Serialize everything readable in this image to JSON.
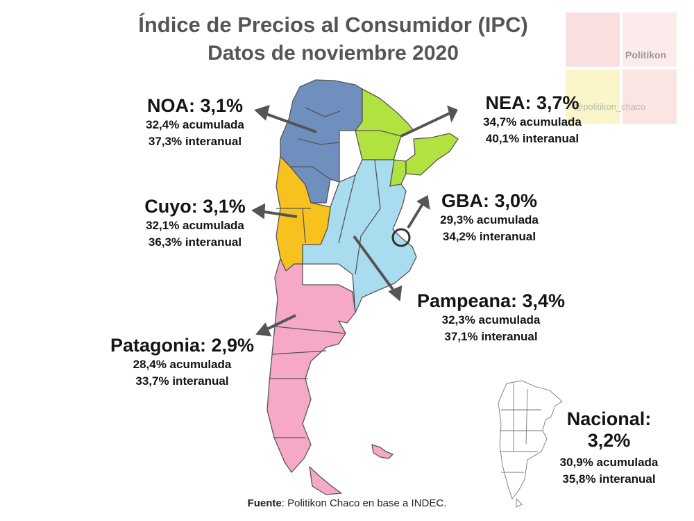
{
  "title": {
    "line1": "Índice de Precios al Consumidor (IPC)",
    "line2": "Datos de noviembre 2020"
  },
  "logo": {
    "name": "Politikon",
    "handle": "@politikon_chaco"
  },
  "colors": {
    "noa": "#6f8fbf",
    "nea": "#b2e23f",
    "cuyo": "#f7c21e",
    "pampeana": "#a9dcef",
    "gba": "#a9dcef",
    "patagonia": "#f5a9c7",
    "logo_red": "#f4c5c2",
    "logo_yellow": "#f8f2b2"
  },
  "regions": {
    "noa": {
      "name": "NOA: 3,1%",
      "acumulada": "32,4% acumulada",
      "interanual": "37,3% interanual"
    },
    "nea": {
      "name": "NEA: 3,7%",
      "acumulada": "34,7% acumulada",
      "interanual": "40,1% interanual"
    },
    "cuyo": {
      "name": "Cuyo: 3,1%",
      "acumulada": "32,1% acumulada",
      "interanual": "36,3% interanual"
    },
    "gba": {
      "name": "GBA: 3,0%",
      "acumulada": "29,3% acumulada",
      "interanual": "34,2% interanual"
    },
    "pampeana": {
      "name": "Pampeana: 3,4%",
      "acumulada": "32,3% acumulada",
      "interanual": "37,1% interanual"
    },
    "patagonia": {
      "name": "Patagonia: 2,9%",
      "acumulada": "28,4% acumulada",
      "interanual": "33,7% interanual"
    },
    "nacional": {
      "name_line1": "Nacional:",
      "name_line2": "3,2%",
      "acumulada": "30,9% acumulada",
      "interanual": "35,8% interanual"
    }
  },
  "source": {
    "label": "Fuente",
    "text": ": Politikon Chaco en base a INDEC."
  }
}
